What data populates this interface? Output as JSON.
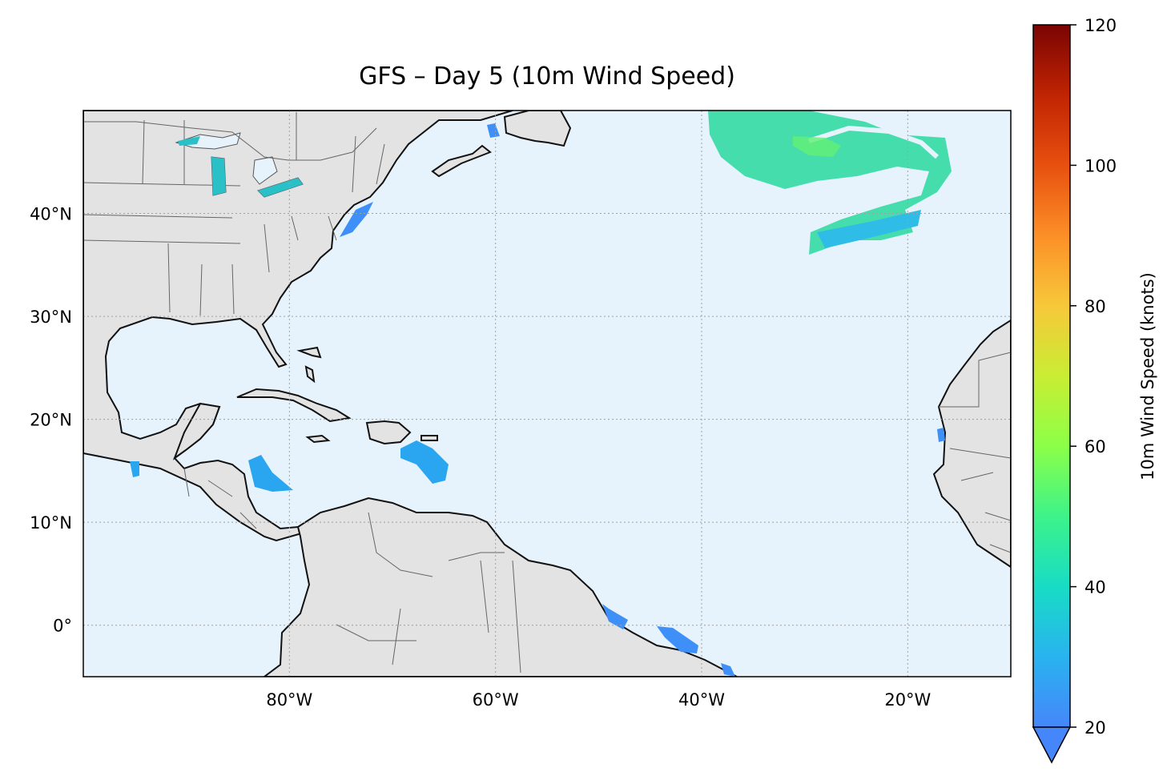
{
  "title": "GFS – Day 5 (10m Wind Speed)",
  "map": {
    "lon_range": [
      -100,
      -10
    ],
    "lat_range": [
      -5,
      50
    ],
    "lon_ticks": [
      {
        "value": -80,
        "label": "80°W"
      },
      {
        "value": -60,
        "label": "60°W"
      },
      {
        "value": -40,
        "label": "40°W"
      },
      {
        "value": -20,
        "label": "20°W"
      }
    ],
    "lat_ticks": [
      {
        "value": 40,
        "label": "40°N"
      },
      {
        "value": 30,
        "label": "30°N"
      },
      {
        "value": 20,
        "label": "20°N"
      },
      {
        "value": 10,
        "label": "10°N"
      },
      {
        "value": 0,
        "label": "0°"
      }
    ],
    "gridlines": true,
    "ocean_color": "#e6f3fc",
    "land_color": "#e3e3e3"
  },
  "colorbar": {
    "label": "10m Wind Speed (knots)",
    "min": 20,
    "max": 120,
    "extend": "min",
    "ticks": [
      {
        "value": 20,
        "label": "20"
      },
      {
        "value": 40,
        "label": "40"
      },
      {
        "value": 60,
        "label": "60"
      },
      {
        "value": 80,
        "label": "80"
      },
      {
        "value": 100,
        "label": "100"
      },
      {
        "value": 120,
        "label": "120"
      }
    ],
    "colormap": "turbo"
  }
}
